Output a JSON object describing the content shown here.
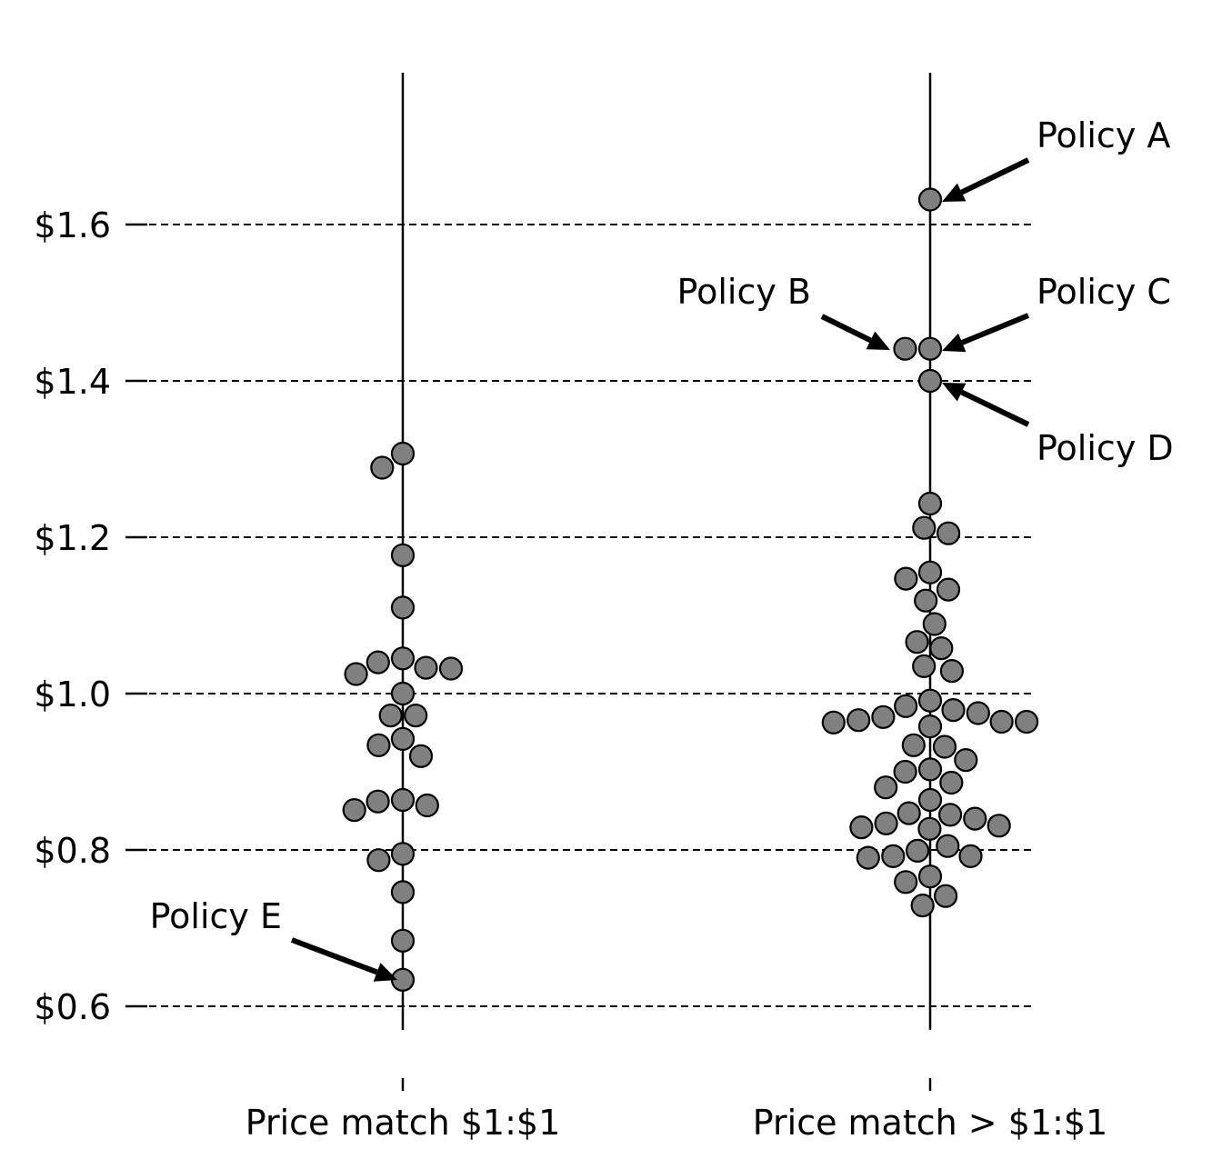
{
  "chart_data": {
    "type": "scatter",
    "subtype": "beeswarm",
    "title": "",
    "xlabel": "",
    "ylabel": "",
    "ylim": [
      0.56,
      1.8
    ],
    "yticks": [
      0.6,
      0.8,
      1.0,
      1.2,
      1.4,
      1.6
    ],
    "ytick_labels": [
      "$0.6",
      "$0.8",
      "$1.0",
      "$1.2",
      "$1.4",
      "$1.6"
    ],
    "grid": "horizontal dashed at y ticks",
    "categories": [
      "Price match $1:$1",
      "Price match > $1:$1"
    ],
    "marker_color": "#808080",
    "marker_edge_color": "#000000",
    "series": [
      {
        "category": "Price match $1:$1",
        "values": [
          1.307,
          1.289,
          1.177,
          1.11,
          1.045,
          1.033,
          1.025,
          1.032,
          1.04,
          1.0,
          0.972,
          0.972,
          0.934,
          0.92,
          0.942,
          0.857,
          0.851,
          0.862,
          0.864,
          0.795,
          0.787,
          0.746,
          0.684,
          0.634
        ]
      },
      {
        "category": "Price match > $1:$1",
        "values": [
          1.632,
          1.441,
          1.441,
          1.4,
          1.243,
          1.212,
          1.205,
          1.147,
          1.155,
          1.133,
          1.119,
          1.089,
          1.066,
          1.058,
          1.035,
          1.029,
          0.991,
          0.984,
          0.975,
          0.964,
          0.964,
          0.958,
          0.963,
          0.966,
          0.97,
          0.979,
          0.915,
          0.932,
          0.934,
          0.903,
          0.88,
          0.886,
          0.9,
          0.864,
          0.845,
          0.84,
          0.829,
          0.827,
          0.831,
          0.834,
          0.847,
          0.805,
          0.792,
          0.79,
          0.799,
          0.792,
          0.759,
          0.766,
          0.741,
          0.729
        ]
      }
    ],
    "annotations": [
      {
        "text": "Policy A",
        "category": "Price match > $1:$1",
        "value": 1.632
      },
      {
        "text": "Policy B",
        "category": "Price match > $1:$1",
        "value": 1.441
      },
      {
        "text": "Policy C",
        "category": "Price match > $1:$1",
        "value": 1.441
      },
      {
        "text": "Policy D",
        "category": "Price match > $1:$1",
        "value": 1.4
      },
      {
        "text": "Policy E",
        "category": "Price match $1:$1",
        "value": 0.634
      }
    ]
  }
}
